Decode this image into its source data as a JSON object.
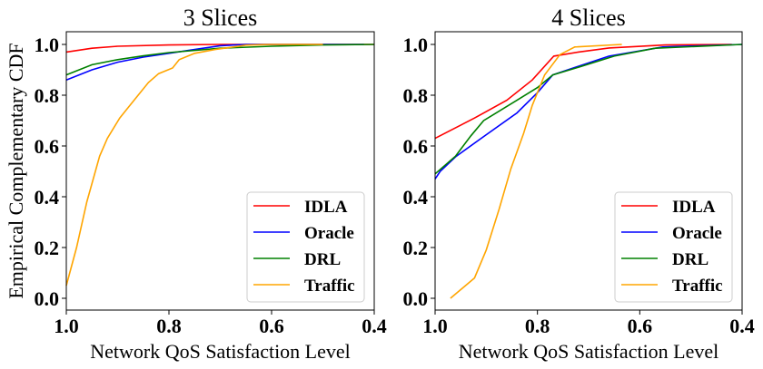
{
  "chart_data": [
    {
      "type": "line",
      "title": "3 Slices",
      "xlabel": "Network QoS Satisfaction Level",
      "ylabel": "Empirical Complementary CDF",
      "xlim": [
        1.0,
        0.4
      ],
      "ylim": [
        -0.05,
        1.05
      ],
      "x_ticks": [
        "1.0",
        "0.8",
        "0.6",
        "0.4"
      ],
      "y_ticks": [
        "0.0",
        "0.2",
        "0.4",
        "0.6",
        "0.8",
        "1.0"
      ],
      "grid": false,
      "legend_position": "lower-right",
      "series": [
        {
          "name": "IDLA",
          "color": "#ff0000",
          "points": [
            [
              1.0,
              0.97
            ],
            [
              0.95,
              0.985
            ],
            [
              0.9,
              0.993
            ],
            [
              0.8,
              0.998
            ],
            [
              0.7,
              1.0
            ],
            [
              0.4,
              1.0
            ]
          ]
        },
        {
          "name": "Oracle",
          "color": "#0000ff",
          "points": [
            [
              1.0,
              0.86
            ],
            [
              0.95,
              0.9
            ],
            [
              0.9,
              0.93
            ],
            [
              0.85,
              0.95
            ],
            [
              0.8,
              0.965
            ],
            [
              0.75,
              0.98
            ],
            [
              0.7,
              0.995
            ],
            [
              0.65,
              1.0
            ],
            [
              0.42,
              1.0
            ]
          ]
        },
        {
          "name": "DRL",
          "color": "#008000",
          "points": [
            [
              1.0,
              0.88
            ],
            [
              0.95,
              0.92
            ],
            [
              0.9,
              0.94
            ],
            [
              0.85,
              0.955
            ],
            [
              0.8,
              0.968
            ],
            [
              0.7,
              0.985
            ],
            [
              0.6,
              0.993
            ],
            [
              0.5,
              0.998
            ],
            [
              0.4,
              1.0
            ]
          ]
        },
        {
          "name": "Traffic",
          "color": "#ffa500",
          "points": [
            [
              1.0,
              0.05
            ],
            [
              0.98,
              0.2
            ],
            [
              0.96,
              0.38
            ],
            [
              0.935,
              0.56
            ],
            [
              0.92,
              0.63
            ],
            [
              0.896,
              0.71
            ],
            [
              0.88,
              0.75
            ],
            [
              0.86,
              0.8
            ],
            [
              0.84,
              0.85
            ],
            [
              0.82,
              0.885
            ],
            [
              0.793,
              0.907
            ],
            [
              0.78,
              0.94
            ],
            [
              0.75,
              0.965
            ],
            [
              0.71,
              0.98
            ],
            [
              0.65,
              0.997
            ],
            [
              0.6,
              1.0
            ],
            [
              0.5,
              1.0
            ]
          ]
        }
      ]
    },
    {
      "type": "line",
      "title": "4 Slices",
      "xlabel": "Network QoS Satisfaction Level",
      "ylabel": "",
      "xlim": [
        1.0,
        0.4
      ],
      "ylim": [
        -0.05,
        1.05
      ],
      "x_ticks": [
        "1.0",
        "0.8",
        "0.6",
        "0.4"
      ],
      "y_ticks": [
        "0.0",
        "0.2",
        "0.4",
        "0.6",
        "0.8",
        "1.0"
      ],
      "grid": false,
      "legend_position": "lower-right",
      "series": [
        {
          "name": "IDLA",
          "color": "#ff0000",
          "points": [
            [
              1.0,
              0.63
            ],
            [
              0.923,
              0.71
            ],
            [
              0.86,
              0.78
            ],
            [
              0.81,
              0.86
            ],
            [
              0.768,
              0.954
            ],
            [
              0.72,
              0.97
            ],
            [
              0.66,
              0.986
            ],
            [
              0.55,
              0.998
            ],
            [
              0.42,
              1.0
            ]
          ]
        },
        {
          "name": "Oracle",
          "color": "#0000ff",
          "points": [
            [
              1.0,
              0.47
            ],
            [
              0.99,
              0.5
            ],
            [
              0.96,
              0.557
            ],
            [
              0.91,
              0.63
            ],
            [
              0.84,
              0.73
            ],
            [
              0.8,
              0.81
            ],
            [
              0.77,
              0.88
            ],
            [
              0.72,
              0.914
            ],
            [
              0.66,
              0.954
            ],
            [
              0.555,
              0.99
            ],
            [
              0.4,
              1.0
            ]
          ]
        },
        {
          "name": "DRL",
          "color": "#008000",
          "points": [
            [
              1.0,
              0.49
            ],
            [
              0.96,
              0.56
            ],
            [
              0.93,
              0.64
            ],
            [
              0.905,
              0.7
            ],
            [
              0.84,
              0.78
            ],
            [
              0.8,
              0.83
            ],
            [
              0.77,
              0.88
            ],
            [
              0.72,
              0.91
            ],
            [
              0.65,
              0.954
            ],
            [
              0.57,
              0.985
            ],
            [
              0.4,
              1.0
            ]
          ]
        },
        {
          "name": "Traffic",
          "color": "#ffa500",
          "points": [
            [
              0.97,
              0.0
            ],
            [
              0.923,
              0.08
            ],
            [
              0.9,
              0.19
            ],
            [
              0.875,
              0.35
            ],
            [
              0.852,
              0.51
            ],
            [
              0.827,
              0.65
            ],
            [
              0.81,
              0.76
            ],
            [
              0.786,
              0.88
            ],
            [
              0.756,
              0.96
            ],
            [
              0.727,
              0.99
            ],
            [
              0.635,
              1.0
            ]
          ]
        }
      ]
    }
  ]
}
